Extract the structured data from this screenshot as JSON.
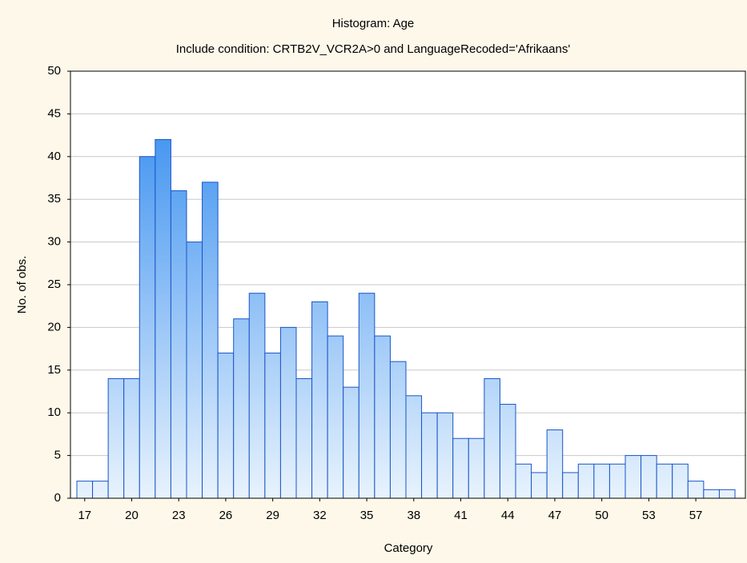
{
  "chart_data": {
    "type": "bar",
    "title": "Histogram: Age",
    "subtitle": "Include condition: CRTB2V_VCR2A>0 and LanguageRecoded='Afrikaans'",
    "x_label": "Category",
    "y_label": "No. of obs.",
    "categories": [
      "17",
      null,
      null,
      "20",
      null,
      null,
      "23",
      null,
      null,
      "26",
      null,
      null,
      "29",
      null,
      null,
      "32",
      null,
      null,
      "35",
      null,
      null,
      "38",
      null,
      null,
      "41",
      null,
      null,
      "44",
      null,
      null,
      "47",
      null,
      null,
      "50",
      null,
      null,
      "53",
      null,
      null,
      "57",
      null,
      null
    ],
    "values": [
      2,
      2,
      14,
      14,
      40,
      42,
      36,
      30,
      37,
      17,
      21,
      24,
      17,
      20,
      14,
      23,
      19,
      13,
      24,
      19,
      16,
      12,
      10,
      10,
      7,
      7,
      14,
      11,
      4,
      3,
      8,
      3,
      4,
      4,
      4,
      5,
      5,
      4,
      4,
      2,
      1,
      1
    ],
    "color": "#2a86ee",
    "ylim": [
      0,
      50
    ],
    "yticks": [
      0,
      5,
      10,
      15,
      20,
      25,
      30,
      35,
      40,
      45,
      50
    ],
    "grid": true
  }
}
